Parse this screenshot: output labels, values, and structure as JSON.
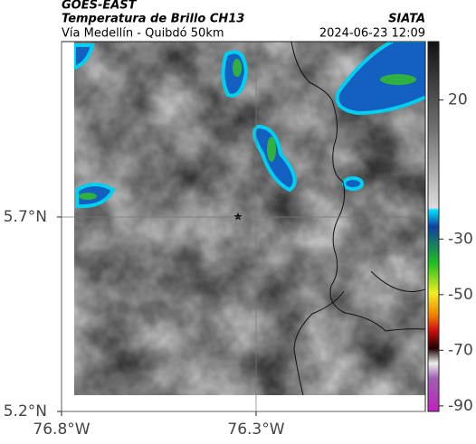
{
  "header": {
    "title": "GOES-EAST",
    "subtitle": "Temperatura de Brillo CH13",
    "route": "Vía Medellín - Quibdó 50km",
    "source": "SIATA",
    "timestamp": "2024-06-23 12:09"
  },
  "map": {
    "xlim": [
      -76.8,
      -75.865
    ],
    "ylim": [
      5.2,
      6.151
    ],
    "xticks": [
      {
        "value": -76.8,
        "label": "76.8°W"
      },
      {
        "value": -76.3,
        "label": "76.3°W"
      }
    ],
    "yticks": [
      {
        "value": 5.2,
        "label": "5.2°N"
      },
      {
        "value": 5.7,
        "label": "5.7°N"
      }
    ],
    "grid": true
  },
  "colorbar": {
    "lim": [
      -92,
      41
    ],
    "ticks": [
      20,
      -30,
      -50,
      -70,
      -90
    ]
  }
}
